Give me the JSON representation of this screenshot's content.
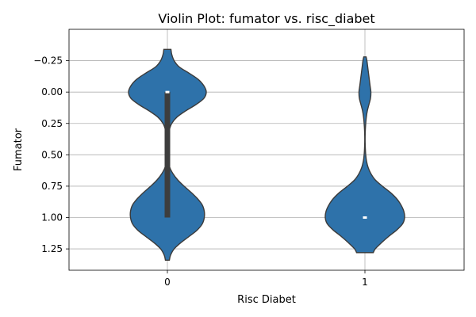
{
  "chart_data": {
    "type": "violin",
    "title": "Violin Plot: fumator vs. risc_diabet",
    "xlabel": "Risc Diabet",
    "ylabel": "Fumator",
    "categories": [
      "0",
      "1"
    ],
    "ylim": [
      -0.5,
      1.42
    ],
    "y_inverted": true,
    "yticks": [
      -0.25,
      0.0,
      0.25,
      0.5,
      0.75,
      1.0,
      1.25
    ],
    "ytick_labels": [
      "−0.25",
      "0.00",
      "0.25",
      "0.50",
      "0.75",
      "1.00",
      "1.25"
    ],
    "grid": true,
    "colors": {
      "fill": "#2e72aa",
      "edge": "#3b3b3b",
      "box": "#3d3d3d",
      "median": "#ffffff"
    },
    "violins": [
      {
        "category": "0",
        "density_y": [
          -0.34,
          -0.3,
          -0.25,
          -0.2,
          -0.15,
          -0.1,
          -0.05,
          0.0,
          0.05,
          0.1,
          0.15,
          0.2,
          0.25,
          0.3,
          0.35,
          0.4,
          0.45,
          0.5,
          0.55,
          0.6,
          0.65,
          0.7,
          0.75,
          0.8,
          0.85,
          0.9,
          0.95,
          1.0,
          1.05,
          1.1,
          1.15,
          1.2,
          1.25,
          1.3,
          1.34
        ],
        "density_halfwidth": [
          0.09,
          0.11,
          0.17,
          0.3,
          0.55,
          0.78,
          0.92,
          0.98,
          0.92,
          0.72,
          0.46,
          0.24,
          0.11,
          0.05,
          0.02,
          0.0,
          0.0,
          0.01,
          0.03,
          0.06,
          0.14,
          0.26,
          0.42,
          0.6,
          0.76,
          0.88,
          0.93,
          0.93,
          0.88,
          0.75,
          0.55,
          0.34,
          0.17,
          0.08,
          0.05
        ],
        "box_q1": 0.0,
        "box_q3": 1.0,
        "median": 0.0
      },
      {
        "category": "1",
        "density_y": [
          -0.28,
          -0.25,
          -0.2,
          -0.15,
          -0.1,
          -0.05,
          0.0,
          0.05,
          0.1,
          0.15,
          0.2,
          0.25,
          0.3,
          0.35,
          0.4,
          0.45,
          0.5,
          0.55,
          0.6,
          0.65,
          0.7,
          0.75,
          0.8,
          0.85,
          0.9,
          0.95,
          1.0,
          1.05,
          1.1,
          1.15,
          1.2,
          1.25,
          1.28
        ],
        "density_halfwidth": [
          0.03,
          0.05,
          0.07,
          0.09,
          0.11,
          0.13,
          0.15,
          0.14,
          0.1,
          0.06,
          0.035,
          0.02,
          0.01,
          0.005,
          0.005,
          0.01,
          0.02,
          0.04,
          0.08,
          0.15,
          0.26,
          0.44,
          0.64,
          0.8,
          0.91,
          0.98,
          1.0,
          0.95,
          0.8,
          0.6,
          0.42,
          0.26,
          0.21
        ],
        "box_q1": 1.0,
        "box_q3": 1.0,
        "median": 1.0
      }
    ]
  }
}
